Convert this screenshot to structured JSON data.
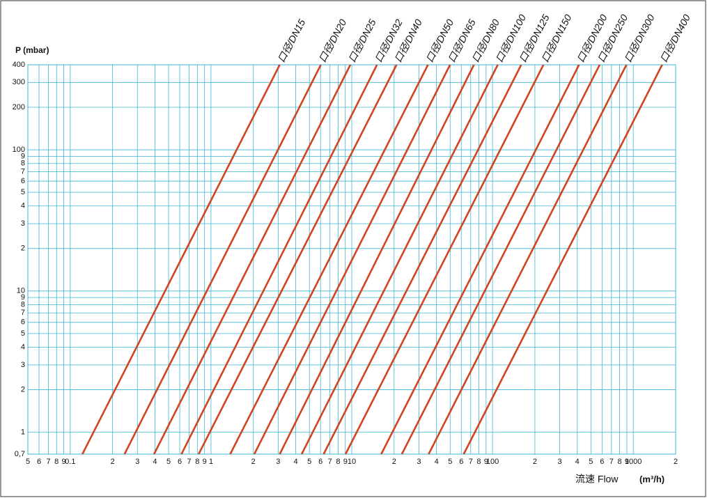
{
  "chart_data": {
    "type": "line",
    "xscale": "log",
    "yscale": "log",
    "grid": true,
    "grid_color": "#3bb6d6",
    "ylabel": "P (mbar)",
    "xlabel": "流速 Flow",
    "xunit": "(m³/h)",
    "xlim": [
      0.05,
      2000
    ],
    "ylim": [
      0.7,
      400
    ],
    "xticks": [
      {
        "value": 0.05,
        "label": "5"
      },
      {
        "value": 0.06,
        "label": "6"
      },
      {
        "value": 0.07,
        "label": "7"
      },
      {
        "value": 0.08,
        "label": "8"
      },
      {
        "value": 0.09,
        "label": "9"
      },
      0.1,
      {
        "value": 0.2,
        "label": "2"
      },
      {
        "value": 0.3,
        "label": "3"
      },
      {
        "value": 0.4,
        "label": "4"
      },
      {
        "value": 0.5,
        "label": "5"
      },
      {
        "value": 0.6,
        "label": "6"
      },
      {
        "value": 0.7,
        "label": "7"
      },
      {
        "value": 0.8,
        "label": "8"
      },
      {
        "value": 0.9,
        "label": "9"
      },
      1,
      2,
      3,
      4,
      5,
      6,
      7,
      8,
      9,
      10,
      {
        "value": 20,
        "label": "2"
      },
      {
        "value": 30,
        "label": "3"
      },
      {
        "value": 40,
        "label": "4"
      },
      {
        "value": 50,
        "label": "5"
      },
      {
        "value": 60,
        "label": "6"
      },
      {
        "value": 70,
        "label": "7"
      },
      {
        "value": 80,
        "label": "8"
      },
      {
        "value": 90,
        "label": "9"
      },
      100,
      {
        "value": 200,
        "label": "2"
      },
      {
        "value": 300,
        "label": "3"
      },
      {
        "value": 400,
        "label": "4"
      },
      {
        "value": 500,
        "label": "5"
      },
      {
        "value": 600,
        "label": "6"
      },
      {
        "value": 700,
        "label": "7"
      },
      {
        "value": 800,
        "label": "8"
      },
      {
        "value": 900,
        "label": "9"
      },
      1000,
      {
        "value": 2000,
        "label": "2"
      }
    ],
    "yticks": [
      {
        "value": 0.7,
        "label": "0,7"
      },
      1,
      2,
      3,
      4,
      5,
      6,
      7,
      8,
      9,
      10,
      {
        "value": 20,
        "label": "2"
      },
      {
        "value": 30,
        "label": "3"
      },
      {
        "value": 40,
        "label": "4"
      },
      {
        "value": 50,
        "label": "5"
      },
      {
        "value": 60,
        "label": "6"
      },
      {
        "value": 70,
        "label": "7"
      },
      {
        "value": 80,
        "label": "8"
      },
      {
        "value": 90,
        "label": "9"
      },
      100,
      200,
      300,
      400
    ],
    "series": [
      {
        "name": "口径/DN15",
        "color": "#d2441f",
        "x": [
          0.122,
          3.08
        ],
        "values": [
          0.7,
          400
        ]
      },
      {
        "name": "口径/DN20",
        "color": "#d2441f",
        "x": [
          0.243,
          6.03
        ],
        "values": [
          0.7,
          400
        ]
      },
      {
        "name": "口径/DN25",
        "color": "#d2441f",
        "x": [
          0.394,
          9.78
        ],
        "values": [
          0.7,
          400
        ]
      },
      {
        "name": "口径/DN32",
        "color": "#d2441f",
        "x": [
          0.617,
          15.1
        ],
        "values": [
          0.7,
          400
        ]
      },
      {
        "name": "口径/DN40",
        "color": "#d2441f",
        "x": [
          0.817,
          20.8
        ],
        "values": [
          0.7,
          400
        ]
      },
      {
        "name": "口径/DN50",
        "color": "#d2441f",
        "x": [
          1.37,
          34.8
        ],
        "values": [
          0.7,
          400
        ]
      },
      {
        "name": "口径/DN65",
        "color": "#d2441f",
        "x": [
          2.03,
          49.9
        ],
        "values": [
          0.7,
          400
        ]
      },
      {
        "name": "口径/DN80",
        "color": "#d2441f",
        "x": [
          3.08,
          73.8
        ],
        "values": [
          0.7,
          400
        ]
      },
      {
        "name": "口径/DN100",
        "color": "#d2441f",
        "x": [
          4.41,
          109
        ],
        "values": [
          0.7,
          400
        ]
      },
      {
        "name": "口径/DN125",
        "color": "#d2441f",
        "x": [
          6.31,
          160
        ],
        "values": [
          0.7,
          400
        ]
      },
      {
        "name": "口径/DN150",
        "color": "#d2441f",
        "x": [
          9.04,
          230
        ],
        "values": [
          0.7,
          400
        ]
      },
      {
        "name": "口径/DN200",
        "color": "#d2441f",
        "x": [
          16.2,
          412
        ],
        "values": [
          0.7,
          400
        ]
      },
      {
        "name": "口径/DN250",
        "color": "#d2441f",
        "x": [
          22.7,
          577
        ],
        "values": [
          0.7,
          400
        ]
      },
      {
        "name": "口径/DN300",
        "color": "#d2441f",
        "x": [
          35.2,
          894
        ],
        "values": [
          0.7,
          400
        ]
      },
      {
        "name": "口径/DN400",
        "color": "#d2441f",
        "x": [
          62.4,
          1603
        ],
        "values": [
          0.7,
          400
        ]
      }
    ]
  }
}
